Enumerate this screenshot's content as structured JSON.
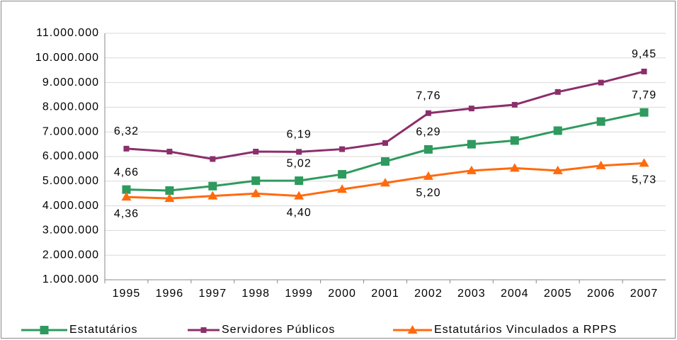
{
  "chart_data": {
    "type": "line",
    "categories": [
      "1995",
      "1996",
      "1997",
      "1998",
      "1999",
      "2000",
      "2001",
      "2002",
      "2003",
      "2004",
      "2005",
      "2006",
      "2007"
    ],
    "series": [
      {
        "name": "Estatutários",
        "color": "#2e9a5e",
        "values": [
          4660000,
          4620000,
          4800000,
          5020000,
          5020000,
          5280000,
          5800000,
          6290000,
          6500000,
          6650000,
          7050000,
          7420000,
          7790000
        ],
        "value_labels": [
          "4,66",
          null,
          null,
          null,
          "5,02",
          null,
          null,
          "6,29",
          null,
          null,
          null,
          null,
          "7,79"
        ]
      },
      {
        "name": "Servidores Públicos",
        "color": "#8b2f6b",
        "values": [
          6320000,
          6200000,
          5900000,
          6200000,
          6190000,
          6300000,
          6550000,
          7760000,
          7950000,
          8100000,
          8620000,
          9000000,
          9450000
        ],
        "value_labels": [
          "6,32",
          null,
          null,
          null,
          "6,19",
          null,
          null,
          "7,76",
          null,
          null,
          null,
          null,
          "9,45"
        ]
      },
      {
        "name": "Estatutários Vinculados a RPPS",
        "color": "#ff6a0e",
        "values": [
          4360000,
          4300000,
          4400000,
          4500000,
          4400000,
          4670000,
          4930000,
          5200000,
          5430000,
          5530000,
          5430000,
          5630000,
          5730000
        ],
        "value_labels": [
          "4,36",
          null,
          null,
          null,
          "4,40",
          null,
          null,
          "5,20",
          null,
          null,
          null,
          null,
          "5,73"
        ]
      }
    ],
    "ylim": [
      1000000,
      11000000
    ],
    "yticks": [
      {
        "value": 1000000,
        "label": "1.000.000"
      },
      {
        "value": 2000000,
        "label": "2.000.000"
      },
      {
        "value": 3000000,
        "label": "3.000.000"
      },
      {
        "value": 4000000,
        "label": "4.000.000"
      },
      {
        "value": 5000000,
        "label": "5.000.000"
      },
      {
        "value": 6000000,
        "label": "6.000.000"
      },
      {
        "value": 7000000,
        "label": "7.000.000"
      },
      {
        "value": 8000000,
        "label": "8.000.000"
      },
      {
        "value": 9000000,
        "label": "9.000.000"
      },
      {
        "value": 10000000,
        "label": "10.000.000"
      },
      {
        "value": 11000000,
        "label": "11.000.000"
      }
    ],
    "grid": true
  }
}
